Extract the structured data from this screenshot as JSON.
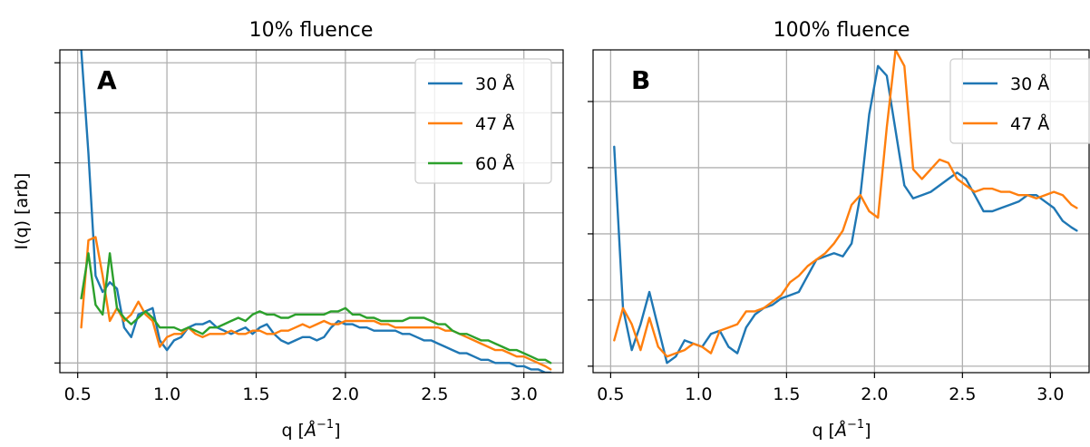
{
  "chart_data": [
    {
      "type": "line",
      "panel_label": "A",
      "title": "10% fluence",
      "xlabel_base": "q [",
      "xlabel_unit": "Å",
      "xlabel_exp": "−1",
      "xlabel_close": "]",
      "ylabel": "I(q) [arb]",
      "xlim": [
        0.4,
        3.22
      ],
      "ylim": [
        0.0,
        1.0
      ],
      "xticks": [
        0.5,
        1.0,
        1.5,
        2.0,
        2.5,
        3.0
      ],
      "xtick_labels": [
        "0.5",
        "1.0",
        "1.5",
        "2.0",
        "2.5",
        "3.0"
      ],
      "yticks": [
        0.03,
        0.185,
        0.34,
        0.495,
        0.65,
        0.805,
        0.96
      ],
      "grid": true,
      "legend_position": "top-right",
      "series": [
        {
          "name": "30 Å",
          "color": "#1f77b4",
          "x": [
            0.52,
            0.56,
            0.6,
            0.64,
            0.68,
            0.72,
            0.76,
            0.8,
            0.84,
            0.88,
            0.92,
            0.96,
            1.0,
            1.04,
            1.08,
            1.12,
            1.16,
            1.2,
            1.24,
            1.28,
            1.32,
            1.36,
            1.4,
            1.44,
            1.48,
            1.52,
            1.56,
            1.6,
            1.64,
            1.68,
            1.72,
            1.76,
            1.8,
            1.84,
            1.88,
            1.92,
            1.96,
            2.0,
            2.04,
            2.08,
            2.12,
            2.16,
            2.2,
            2.24,
            2.28,
            2.32,
            2.36,
            2.4,
            2.44,
            2.48,
            2.52,
            2.56,
            2.6,
            2.64,
            2.68,
            2.72,
            2.76,
            2.8,
            2.84,
            2.88,
            2.92,
            2.96,
            3.0,
            3.04,
            3.08,
            3.12,
            3.15
          ],
          "values": [
            1.0,
            0.68,
            0.3,
            0.25,
            0.28,
            0.26,
            0.14,
            0.11,
            0.18,
            0.19,
            0.2,
            0.1,
            0.07,
            0.1,
            0.11,
            0.14,
            0.15,
            0.15,
            0.16,
            0.14,
            0.13,
            0.12,
            0.13,
            0.14,
            0.12,
            0.14,
            0.15,
            0.12,
            0.1,
            0.09,
            0.1,
            0.11,
            0.11,
            0.1,
            0.11,
            0.14,
            0.16,
            0.15,
            0.15,
            0.14,
            0.14,
            0.13,
            0.13,
            0.13,
            0.13,
            0.12,
            0.12,
            0.11,
            0.1,
            0.1,
            0.09,
            0.08,
            0.07,
            0.06,
            0.06,
            0.05,
            0.04,
            0.04,
            0.03,
            0.03,
            0.03,
            0.02,
            0.02,
            0.01,
            0.01,
            0.0,
            0.0
          ]
        },
        {
          "name": "47 Å",
          "color": "#ff7f0e",
          "x": [
            0.52,
            0.56,
            0.6,
            0.64,
            0.68,
            0.72,
            0.76,
            0.8,
            0.84,
            0.88,
            0.92,
            0.96,
            1.0,
            1.04,
            1.08,
            1.12,
            1.16,
            1.2,
            1.24,
            1.28,
            1.32,
            1.36,
            1.4,
            1.44,
            1.48,
            1.52,
            1.56,
            1.6,
            1.64,
            1.68,
            1.72,
            1.76,
            1.8,
            1.84,
            1.88,
            1.92,
            1.96,
            2.0,
            2.04,
            2.08,
            2.12,
            2.16,
            2.2,
            2.24,
            2.28,
            2.32,
            2.36,
            2.4,
            2.44,
            2.48,
            2.52,
            2.56,
            2.6,
            2.64,
            2.68,
            2.72,
            2.76,
            2.8,
            2.84,
            2.88,
            2.92,
            2.96,
            3.0,
            3.04,
            3.08,
            3.12,
            3.15
          ],
          "values": [
            0.14,
            0.41,
            0.42,
            0.3,
            0.16,
            0.2,
            0.16,
            0.18,
            0.22,
            0.18,
            0.16,
            0.08,
            0.11,
            0.12,
            0.12,
            0.14,
            0.12,
            0.11,
            0.12,
            0.12,
            0.12,
            0.13,
            0.12,
            0.12,
            0.13,
            0.13,
            0.12,
            0.12,
            0.13,
            0.13,
            0.14,
            0.15,
            0.14,
            0.15,
            0.16,
            0.15,
            0.15,
            0.16,
            0.16,
            0.16,
            0.16,
            0.16,
            0.15,
            0.15,
            0.14,
            0.14,
            0.14,
            0.14,
            0.14,
            0.14,
            0.14,
            0.13,
            0.13,
            0.12,
            0.11,
            0.1,
            0.09,
            0.08,
            0.07,
            0.07,
            0.06,
            0.05,
            0.05,
            0.04,
            0.03,
            0.02,
            0.01
          ]
        },
        {
          "name": "60 Å",
          "color": "#2ca02c",
          "x": [
            0.52,
            0.56,
            0.6,
            0.64,
            0.68,
            0.72,
            0.76,
            0.8,
            0.84,
            0.88,
            0.92,
            0.96,
            1.0,
            1.04,
            1.08,
            1.12,
            1.16,
            1.2,
            1.24,
            1.28,
            1.32,
            1.36,
            1.4,
            1.44,
            1.48,
            1.52,
            1.56,
            1.6,
            1.64,
            1.68,
            1.72,
            1.76,
            1.8,
            1.84,
            1.88,
            1.92,
            1.96,
            2.0,
            2.04,
            2.08,
            2.12,
            2.16,
            2.2,
            2.24,
            2.28,
            2.32,
            2.36,
            2.4,
            2.44,
            2.48,
            2.52,
            2.56,
            2.6,
            2.64,
            2.68,
            2.72,
            2.76,
            2.8,
            2.84,
            2.88,
            2.92,
            2.96,
            3.0,
            3.04,
            3.08,
            3.12,
            3.15
          ],
          "values": [
            0.23,
            0.37,
            0.21,
            0.18,
            0.37,
            0.2,
            0.17,
            0.15,
            0.17,
            0.19,
            0.17,
            0.14,
            0.14,
            0.14,
            0.13,
            0.14,
            0.13,
            0.12,
            0.14,
            0.14,
            0.15,
            0.16,
            0.17,
            0.16,
            0.18,
            0.19,
            0.18,
            0.18,
            0.17,
            0.17,
            0.18,
            0.18,
            0.18,
            0.18,
            0.18,
            0.19,
            0.19,
            0.2,
            0.18,
            0.18,
            0.17,
            0.17,
            0.16,
            0.16,
            0.16,
            0.16,
            0.17,
            0.17,
            0.17,
            0.16,
            0.15,
            0.15,
            0.13,
            0.12,
            0.12,
            0.11,
            0.1,
            0.1,
            0.09,
            0.08,
            0.07,
            0.07,
            0.06,
            0.05,
            0.04,
            0.04,
            0.03
          ]
        }
      ]
    },
    {
      "type": "line",
      "panel_label": "B",
      "title": "100% fluence",
      "xlabel_base": "q [",
      "xlabel_unit": "Å",
      "xlabel_exp": "−1",
      "xlabel_close": "]",
      "ylabel": "",
      "xlim": [
        0.4,
        3.22
      ],
      "ylim": [
        0.0,
        1.0
      ],
      "xticks": [
        0.5,
        1.0,
        1.5,
        2.0,
        2.5,
        3.0
      ],
      "xtick_labels": [
        "0.5",
        "1.0",
        "1.5",
        "2.0",
        "2.5",
        "3.0"
      ],
      "yticks": [
        0.02,
        0.225,
        0.43,
        0.635,
        0.84,
        1.045
      ],
      "grid": true,
      "legend_position": "top-right",
      "series": [
        {
          "name": "30 Å",
          "color": "#1f77b4",
          "x": [
            0.52,
            0.57,
            0.62,
            0.67,
            0.72,
            0.77,
            0.82,
            0.87,
            0.92,
            0.97,
            1.02,
            1.07,
            1.12,
            1.17,
            1.22,
            1.27,
            1.32,
            1.37,
            1.42,
            1.47,
            1.52,
            1.57,
            1.62,
            1.67,
            1.72,
            1.77,
            1.82,
            1.87,
            1.92,
            1.97,
            2.02,
            2.07,
            2.12,
            2.17,
            2.22,
            2.27,
            2.32,
            2.37,
            2.42,
            2.47,
            2.52,
            2.57,
            2.62,
            2.67,
            2.72,
            2.77,
            2.82,
            2.87,
            2.92,
            2.97,
            3.02,
            3.07,
            3.12,
            3.15
          ],
          "values": [
            0.7,
            0.2,
            0.07,
            0.15,
            0.25,
            0.14,
            0.03,
            0.05,
            0.1,
            0.09,
            0.08,
            0.12,
            0.13,
            0.08,
            0.06,
            0.14,
            0.18,
            0.2,
            0.21,
            0.23,
            0.24,
            0.25,
            0.3,
            0.35,
            0.36,
            0.37,
            0.36,
            0.4,
            0.55,
            0.8,
            0.95,
            0.92,
            0.75,
            0.58,
            0.54,
            0.55,
            0.56,
            0.58,
            0.6,
            0.62,
            0.6,
            0.55,
            0.5,
            0.5,
            0.51,
            0.52,
            0.53,
            0.55,
            0.55,
            0.53,
            0.51,
            0.47,
            0.45,
            0.44
          ]
        },
        {
          "name": "47 Å",
          "color": "#ff7f0e",
          "x": [
            0.52,
            0.57,
            0.62,
            0.67,
            0.72,
            0.77,
            0.82,
            0.87,
            0.92,
            0.97,
            1.02,
            1.07,
            1.12,
            1.17,
            1.22,
            1.27,
            1.32,
            1.37,
            1.42,
            1.47,
            1.52,
            1.57,
            1.62,
            1.67,
            1.72,
            1.77,
            1.82,
            1.87,
            1.92,
            1.97,
            2.02,
            2.07,
            2.12,
            2.17,
            2.22,
            2.27,
            2.32,
            2.37,
            2.42,
            2.47,
            2.52,
            2.57,
            2.62,
            2.67,
            2.72,
            2.77,
            2.82,
            2.87,
            2.92,
            2.97,
            3.02,
            3.07,
            3.12,
            3.15
          ],
          "values": [
            0.1,
            0.2,
            0.15,
            0.07,
            0.17,
            0.08,
            0.05,
            0.06,
            0.07,
            0.09,
            0.08,
            0.06,
            0.13,
            0.14,
            0.15,
            0.19,
            0.19,
            0.2,
            0.22,
            0.24,
            0.28,
            0.3,
            0.33,
            0.35,
            0.37,
            0.4,
            0.44,
            0.52,
            0.55,
            0.5,
            0.48,
            0.76,
            1.0,
            0.95,
            0.63,
            0.6,
            0.63,
            0.66,
            0.65,
            0.6,
            0.58,
            0.56,
            0.57,
            0.57,
            0.56,
            0.56,
            0.55,
            0.55,
            0.54,
            0.55,
            0.56,
            0.55,
            0.52,
            0.51
          ]
        }
      ]
    }
  ]
}
